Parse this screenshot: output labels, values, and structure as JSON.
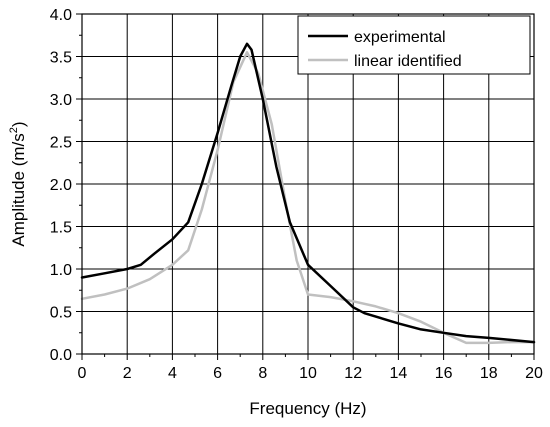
{
  "chart_data": {
    "type": "line",
    "xlabel": "Frequency (Hz)",
    "ylabel": {
      "prefix": "Amplitude (m/s",
      "superscript": "2",
      "suffix": ")"
    },
    "xlim": [
      0,
      20
    ],
    "ylim": [
      0.0,
      4.0
    ],
    "x_ticks": [
      "0",
      "2",
      "4",
      "6",
      "8",
      "10",
      "12",
      "14",
      "16",
      "18",
      "20"
    ],
    "y_ticks": [
      "0.0",
      "0.5",
      "1.0",
      "1.5",
      "2.0",
      "2.5",
      "3.0",
      "3.5",
      "4.0"
    ],
    "grid": true,
    "legend_position": "top-right",
    "series": [
      {
        "name": "experimental",
        "color": "#000000",
        "points": [
          [
            0.0,
            0.9
          ],
          [
            1.0,
            0.95
          ],
          [
            2.0,
            1.0
          ],
          [
            2.6,
            1.05
          ],
          [
            3.2,
            1.18
          ],
          [
            4.0,
            1.35
          ],
          [
            4.7,
            1.55
          ],
          [
            5.3,
            2.0
          ],
          [
            6.0,
            2.6
          ],
          [
            6.6,
            3.15
          ],
          [
            7.0,
            3.5
          ],
          [
            7.3,
            3.65
          ],
          [
            7.5,
            3.58
          ],
          [
            8.0,
            3.0
          ],
          [
            8.6,
            2.2
          ],
          [
            9.2,
            1.55
          ],
          [
            10.0,
            1.05
          ],
          [
            11.0,
            0.8
          ],
          [
            12.0,
            0.55
          ],
          [
            12.5,
            0.48
          ],
          [
            14.0,
            0.36
          ],
          [
            15.0,
            0.29
          ],
          [
            16.0,
            0.25
          ],
          [
            17.0,
            0.21
          ],
          [
            18.0,
            0.19
          ],
          [
            20.0,
            0.14
          ]
        ]
      },
      {
        "name": "linear identified",
        "color": "#c0c0c0",
        "points": [
          [
            0.0,
            0.65
          ],
          [
            1.0,
            0.7
          ],
          [
            2.0,
            0.77
          ],
          [
            3.0,
            0.88
          ],
          [
            4.0,
            1.05
          ],
          [
            4.7,
            1.22
          ],
          [
            5.3,
            1.7
          ],
          [
            6.0,
            2.4
          ],
          [
            6.7,
            3.2
          ],
          [
            7.3,
            3.55
          ],
          [
            7.8,
            3.3
          ],
          [
            8.4,
            2.7
          ],
          [
            9.0,
            1.8
          ],
          [
            9.5,
            1.1
          ],
          [
            10.0,
            0.7
          ],
          [
            11.0,
            0.67
          ],
          [
            12.0,
            0.62
          ],
          [
            13.0,
            0.56
          ],
          [
            14.0,
            0.48
          ],
          [
            15.0,
            0.38
          ],
          [
            16.0,
            0.25
          ],
          [
            17.0,
            0.13
          ],
          [
            18.0,
            0.13
          ],
          [
            19.0,
            0.14
          ],
          [
            20.0,
            0.14
          ]
        ]
      }
    ]
  }
}
